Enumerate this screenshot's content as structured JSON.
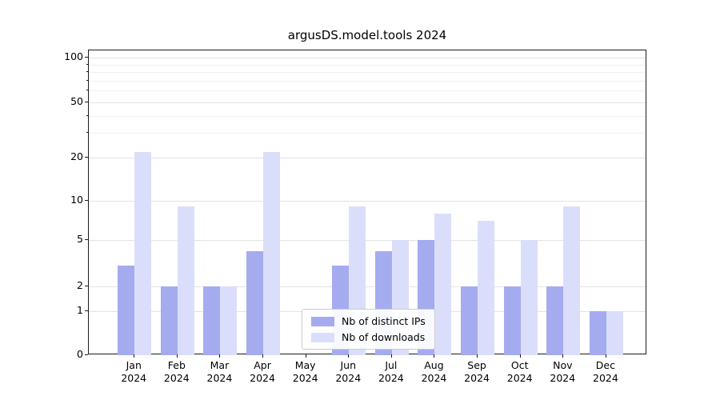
{
  "chart_data": {
    "type": "bar",
    "title": "argusDS.model.tools 2024",
    "categories": [
      "Jan",
      "Feb",
      "Mar",
      "Apr",
      "May",
      "Jun",
      "Jul",
      "Aug",
      "Sep",
      "Oct",
      "Nov",
      "Dec"
    ],
    "year": "2024",
    "series": [
      {
        "name": "Nb of distinct IPs",
        "color": "#a5abef",
        "values": [
          3,
          2,
          2,
          4,
          0,
          3,
          4,
          5,
          2,
          2,
          2,
          1
        ]
      },
      {
        "name": "Nb of downloads",
        "color": "#dbdefb",
        "values": [
          22,
          9,
          2,
          22,
          0,
          9,
          5,
          8,
          7,
          5,
          9,
          1
        ]
      }
    ],
    "yticks": [
      0,
      1,
      2,
      5,
      10,
      20,
      50,
      100
    ],
    "minor_gridlines": [
      30,
      40,
      60,
      70,
      80,
      90
    ],
    "ylim": [
      0,
      100
    ],
    "scale": "symlog",
    "grid": "horizontal",
    "legend_position": "lower center"
  },
  "colors": {
    "bar_primary": "#a5abef",
    "bar_secondary": "#dbdefb",
    "grid_major": "#e3e3e3",
    "grid_minor": "#f0f0f0",
    "axis": "#1a1a1a",
    "text": "#000000",
    "legend_border": "#cccccc",
    "background": "#ffffff"
  }
}
